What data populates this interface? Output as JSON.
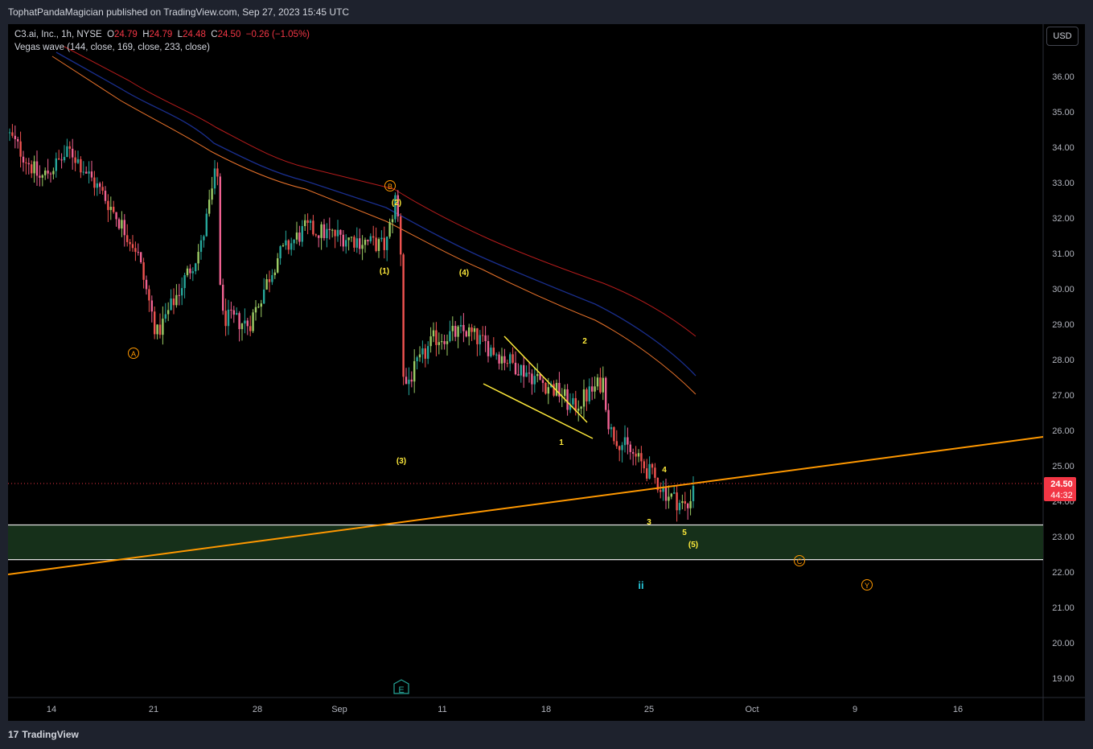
{
  "header": {
    "publisher": "TophatPandaMagician published on TradingView.com, Sep 27, 2023 15:45 UTC"
  },
  "legend": {
    "symbol": "C3.ai, Inc., 1h, NYSE",
    "open_label": "O",
    "open": "24.79",
    "high_label": "H",
    "high": "24.79",
    "low_label": "L",
    "low": "24.48",
    "close_label": "C",
    "close": "24.50",
    "change": "−0.26 (−1.05%)",
    "indicator": "Vegas wave (144, close, 169, close, 233, close)"
  },
  "currency_button": "USD",
  "price_axis": {
    "ticks": [
      "36.00",
      "35.00",
      "34.00",
      "33.00",
      "32.00",
      "31.00",
      "30.00",
      "29.00",
      "28.00",
      "27.00",
      "26.00",
      "25.00",
      "24.00",
      "23.00",
      "22.00",
      "21.00",
      "20.00",
      "19.00"
    ],
    "last_price": "24.50",
    "countdown": "44:32"
  },
  "time_axis": {
    "labels": [
      "14",
      "21",
      "28",
      "Sep",
      "11",
      "18",
      "25",
      "Oct",
      "9",
      "16"
    ]
  },
  "wave_labels": {
    "A": "A",
    "B": "B",
    "C": "C",
    "Y": "Y",
    "w1p": "(1)",
    "w2p": "(2)",
    "w3p": "(3)",
    "w4p": "(4)",
    "w5p": "(5)",
    "w1": "1",
    "w2": "2",
    "w3": "3",
    "w4": "4",
    "w5": "5",
    "ii": "ii"
  },
  "earnings_marker": "E",
  "footer": {
    "brand": "TradingView",
    "logo_mark": "17"
  },
  "colors": {
    "up": "#26a69a",
    "down": "#ef5350",
    "pink": "#f06292",
    "ema144": "#1a237e",
    "ema169": "#8d1c1c",
    "ema233": "#e65100",
    "trendline": "#ff9800",
    "wedge": "#ffeb3b",
    "zone": "#1b3a1b",
    "price_label": "#f23645",
    "wave_orange": "#ff9800",
    "wave_yellow": "#ffeb3b",
    "wave_teal": "#26c6da"
  },
  "chart_data": {
    "type": "candlestick",
    "interval": "1h",
    "symbol": "C3.ai, Inc.",
    "last": 24.5,
    "y_range": [
      18.6,
      36.8
    ],
    "support_zone": [
      22.35,
      23.33
    ],
    "trendline": {
      "from": [
        "Aug 8",
        21.9
      ],
      "to": [
        "Oct 20",
        25.8
      ]
    },
    "price_path": [
      [
        "Aug 8",
        34.4
      ],
      [
        "Aug 10",
        33.1
      ],
      [
        "Aug 11",
        33.9
      ],
      [
        "Aug 15",
        32.6
      ],
      [
        "Aug 17",
        31.1
      ],
      [
        "Aug 18",
        28.7
      ],
      [
        "Aug 21",
        31.2
      ],
      [
        "Aug 23",
        32.9
      ],
      [
        "Aug 24",
        33.5
      ],
      [
        "Aug 25",
        29.2
      ],
      [
        "Aug 28",
        29.0
      ],
      [
        "Aug 30",
        30.9
      ],
      [
        "Aug 31",
        31.7
      ],
      [
        "Sep 5",
        31.2
      ],
      [
        "Sep 6",
        32.6
      ],
      [
        "Sep 7",
        31.3
      ],
      [
        "Sep 8",
        27.2
      ],
      [
        "Sep 11",
        28.6
      ],
      [
        "Sep 12",
        28.8
      ],
      [
        "Sep 14",
        28.0
      ],
      [
        "Sep 18",
        27.0
      ],
      [
        "Sep 19",
        26.6
      ],
      [
        "Sep 21",
        27.4
      ],
      [
        "Sep 22",
        26.0
      ],
      [
        "Sep 25",
        25.0
      ],
      [
        "Sep 26",
        24.2
      ],
      [
        "Sep 27",
        23.8
      ],
      [
        "Sep 27",
        24.5
      ]
    ]
  }
}
